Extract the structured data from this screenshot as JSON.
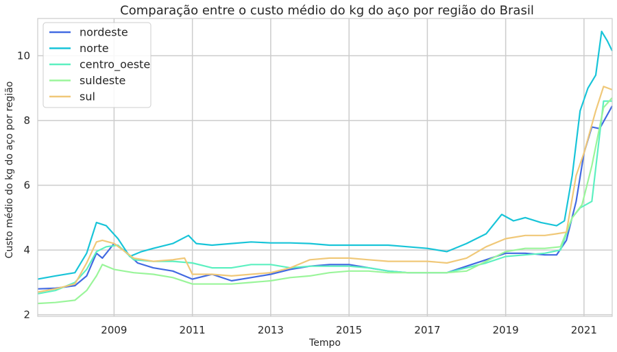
{
  "chart_data": {
    "type": "line",
    "title": "Comparação entre o custo médio do kg do aço por região do Brasil",
    "xlabel": "Tempo",
    "ylabel": "Custo médio do kg do aço por região",
    "xlim": [
      2007.05,
      2021.72
    ],
    "ylim": [
      1.95,
      11.15
    ],
    "x_ticks": [
      2009,
      2011,
      2013,
      2015,
      2017,
      2019,
      2021
    ],
    "x_tick_labels": [
      "2009",
      "2011",
      "2013",
      "2015",
      "2017",
      "2019",
      "2021"
    ],
    "y_ticks": [
      2,
      4,
      6,
      8,
      10
    ],
    "y_tick_labels": [
      "2",
      "4",
      "6",
      "8",
      "10"
    ],
    "grid": true,
    "legend_position": "top-left",
    "series": [
      {
        "name": "nordeste",
        "color": "#4169e1",
        "x": [
          2007.05,
          2007.5,
          2008.0,
          2008.3,
          2008.55,
          2008.7,
          2009.0,
          2009.3,
          2009.6,
          2010.0,
          2010.5,
          2011.0,
          2011.5,
          2012.0,
          2012.5,
          2013.0,
          2013.5,
          2014.0,
          2014.5,
          2015.0,
          2015.5,
          2016.0,
          2016.5,
          2017.0,
          2017.5,
          2018.0,
          2018.5,
          2019.0,
          2019.5,
          2020.0,
          2020.3,
          2020.55,
          2020.8,
          2021.0,
          2021.2,
          2021.4,
          2021.72
        ],
        "y": [
          2.8,
          2.82,
          2.9,
          3.2,
          3.9,
          3.75,
          4.2,
          3.95,
          3.6,
          3.45,
          3.35,
          3.1,
          3.25,
          3.05,
          3.15,
          3.25,
          3.4,
          3.5,
          3.55,
          3.55,
          3.45,
          3.35,
          3.3,
          3.3,
          3.3,
          3.5,
          3.7,
          3.9,
          3.9,
          3.85,
          3.85,
          4.3,
          5.5,
          7.0,
          7.8,
          7.75,
          8.45
        ]
      },
      {
        "name": "norte",
        "color": "#17c4d8",
        "x": [
          2007.05,
          2007.5,
          2008.0,
          2008.3,
          2008.55,
          2008.8,
          2009.1,
          2009.4,
          2009.7,
          2010.0,
          2010.5,
          2010.9,
          2011.1,
          2011.5,
          2012.0,
          2012.5,
          2013.0,
          2013.5,
          2014.0,
          2014.5,
          2015.0,
          2015.5,
          2016.0,
          2016.5,
          2017.0,
          2017.5,
          2018.0,
          2018.5,
          2018.9,
          2019.2,
          2019.5,
          2019.9,
          2020.3,
          2020.5,
          2020.7,
          2020.9,
          2021.1,
          2021.3,
          2021.45,
          2021.6,
          2021.72
        ],
        "y": [
          3.1,
          3.2,
          3.3,
          3.9,
          4.85,
          4.75,
          4.35,
          3.8,
          3.95,
          4.05,
          4.2,
          4.45,
          4.2,
          4.15,
          4.2,
          4.25,
          4.22,
          4.22,
          4.2,
          4.15,
          4.15,
          4.15,
          4.15,
          4.1,
          4.05,
          3.95,
          4.2,
          4.5,
          5.1,
          4.9,
          5.0,
          4.85,
          4.75,
          4.9,
          6.3,
          8.3,
          9.0,
          9.4,
          10.75,
          10.45,
          10.15
        ]
      },
      {
        "name": "centro_oeste",
        "color": "#5cf0c0",
        "x": [
          2007.05,
          2007.5,
          2008.0,
          2008.3,
          2008.55,
          2008.8,
          2009.1,
          2009.5,
          2010.0,
          2010.5,
          2011.0,
          2011.5,
          2012.0,
          2012.5,
          2013.0,
          2013.5,
          2014.0,
          2014.5,
          2015.0,
          2015.5,
          2016.0,
          2016.5,
          2017.0,
          2017.5,
          2018.0,
          2018.5,
          2019.0,
          2019.5,
          2020.0,
          2020.4,
          2020.7,
          2020.9,
          2021.2,
          2021.5,
          2021.72
        ],
        "y": [
          2.65,
          2.75,
          3.0,
          3.4,
          3.95,
          4.1,
          4.15,
          3.7,
          3.65,
          3.65,
          3.6,
          3.45,
          3.45,
          3.55,
          3.55,
          3.45,
          3.5,
          3.5,
          3.5,
          3.45,
          3.35,
          3.3,
          3.3,
          3.3,
          3.45,
          3.6,
          3.8,
          3.85,
          3.9,
          4.0,
          5.0,
          5.3,
          5.5,
          8.6,
          8.6
        ]
      },
      {
        "name": "suldeste",
        "color": "#9af59a",
        "x": [
          2007.05,
          2007.5,
          2008.0,
          2008.3,
          2008.55,
          2008.7,
          2009.0,
          2009.5,
          2010.0,
          2010.5,
          2011.0,
          2011.5,
          2012.0,
          2012.5,
          2013.0,
          2013.5,
          2014.0,
          2014.5,
          2015.0,
          2015.5,
          2016.0,
          2016.5,
          2017.0,
          2017.5,
          2018.0,
          2018.5,
          2019.0,
          2019.5,
          2020.0,
          2020.4,
          2020.7,
          2020.95,
          2021.2,
          2021.5,
          2021.72
        ],
        "y": [
          2.35,
          2.38,
          2.45,
          2.75,
          3.2,
          3.55,
          3.4,
          3.3,
          3.25,
          3.15,
          2.95,
          2.95,
          2.95,
          3.0,
          3.05,
          3.15,
          3.2,
          3.3,
          3.35,
          3.35,
          3.3,
          3.3,
          3.3,
          3.3,
          3.35,
          3.65,
          3.95,
          4.05,
          4.05,
          4.1,
          5.0,
          5.4,
          6.6,
          8.4,
          8.7
        ]
      },
      {
        "name": "sul",
        "color": "#f0c878",
        "x": [
          2007.05,
          2007.5,
          2008.0,
          2008.3,
          2008.55,
          2008.7,
          2009.0,
          2009.5,
          2010.0,
          2010.5,
          2010.8,
          2011.0,
          2011.5,
          2012.0,
          2012.5,
          2013.0,
          2013.5,
          2014.0,
          2014.5,
          2015.0,
          2015.5,
          2016.0,
          2016.5,
          2017.0,
          2017.5,
          2018.0,
          2018.5,
          2019.0,
          2019.5,
          2020.0,
          2020.3,
          2020.55,
          2020.8,
          2021.0,
          2021.3,
          2021.5,
          2021.72
        ],
        "y": [
          2.7,
          2.8,
          2.95,
          3.6,
          4.25,
          4.3,
          4.2,
          3.75,
          3.65,
          3.7,
          3.75,
          3.25,
          3.25,
          3.2,
          3.25,
          3.3,
          3.45,
          3.7,
          3.75,
          3.75,
          3.7,
          3.65,
          3.65,
          3.65,
          3.6,
          3.75,
          4.1,
          4.35,
          4.45,
          4.45,
          4.5,
          4.55,
          6.3,
          7.0,
          8.3,
          9.05,
          8.95
        ]
      }
    ]
  }
}
